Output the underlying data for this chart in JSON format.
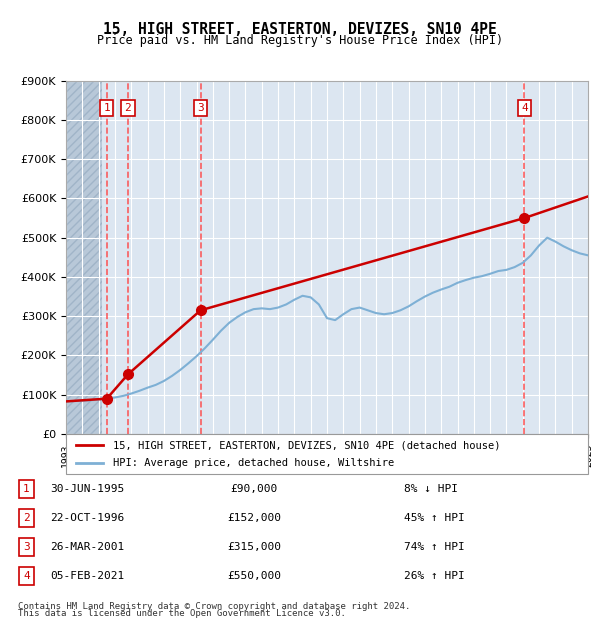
{
  "title": "15, HIGH STREET, EASTERTON, DEVIZES, SN10 4PE",
  "subtitle": "Price paid vs. HM Land Registry's House Price Index (HPI)",
  "legend_property": "15, HIGH STREET, EASTERTON, DEVIZES, SN10 4PE (detached house)",
  "legend_hpi": "HPI: Average price, detached house, Wiltshire",
  "footer1": "Contains HM Land Registry data © Crown copyright and database right 2024.",
  "footer2": "This data is licensed under the Open Government Licence v3.0.",
  "transactions": [
    {
      "num": 1,
      "date": "30-JUN-1995",
      "price": 90000,
      "pct": "8%",
      "dir": "↓",
      "x": 1995.5
    },
    {
      "num": 2,
      "date": "22-OCT-1996",
      "price": 152000,
      "pct": "45%",
      "dir": "↑",
      "x": 1996.8
    },
    {
      "num": 3,
      "date": "26-MAR-2001",
      "price": 315000,
      "pct": "74%",
      "dir": "↑",
      "x": 2001.25
    },
    {
      "num": 4,
      "date": "05-FEB-2021",
      "price": 550000,
      "pct": "26%",
      "dir": "↑",
      "x": 2021.1
    }
  ],
  "hpi_x": [
    1993,
    1993.5,
    1994,
    1994.5,
    1995,
    1995.5,
    1996,
    1996.5,
    1997,
    1997.5,
    1998,
    1998.5,
    1999,
    1999.5,
    2000,
    2000.5,
    2001,
    2001.5,
    2002,
    2002.5,
    2003,
    2003.5,
    2004,
    2004.5,
    2005,
    2005.5,
    2006,
    2006.5,
    2007,
    2007.5,
    2008,
    2008.5,
    2009,
    2009.5,
    2010,
    2010.5,
    2011,
    2011.5,
    2012,
    2012.5,
    2013,
    2013.5,
    2014,
    2014.5,
    2015,
    2015.5,
    2016,
    2016.5,
    2017,
    2017.5,
    2018,
    2018.5,
    2019,
    2019.5,
    2020,
    2020.5,
    2021,
    2021.5,
    2022,
    2022.5,
    2023,
    2023.5,
    2024,
    2024.5,
    2025
  ],
  "hpi_y": [
    83000,
    84000,
    85000,
    86000,
    88000,
    90000,
    93000,
    97000,
    103000,
    110000,
    118000,
    125000,
    135000,
    148000,
    163000,
    180000,
    198000,
    218000,
    240000,
    263000,
    283000,
    298000,
    310000,
    318000,
    320000,
    318000,
    322000,
    330000,
    342000,
    352000,
    348000,
    330000,
    295000,
    290000,
    305000,
    318000,
    322000,
    315000,
    308000,
    305000,
    308000,
    315000,
    325000,
    338000,
    350000,
    360000,
    368000,
    375000,
    385000,
    392000,
    398000,
    402000,
    408000,
    415000,
    418000,
    425000,
    436000,
    455000,
    480000,
    500000,
    490000,
    478000,
    468000,
    460000,
    455000
  ],
  "property_x": [
    1993,
    1995.5,
    1996.8,
    2001.25,
    2021.1,
    2025
  ],
  "property_y": [
    83000,
    90000,
    152000,
    315000,
    550000,
    605000
  ],
  "ylim": [
    0,
    900000
  ],
  "xlim": [
    1993,
    2025
  ],
  "bg_color": "#dce6f1",
  "hatch_color": "#b8c8d8",
  "grid_color": "#ffffff",
  "property_color": "#cc0000",
  "hpi_color": "#7eb0d5",
  "marker_color": "#cc0000",
  "dashed_color": "#ff4444",
  "box_color": "#cc0000"
}
